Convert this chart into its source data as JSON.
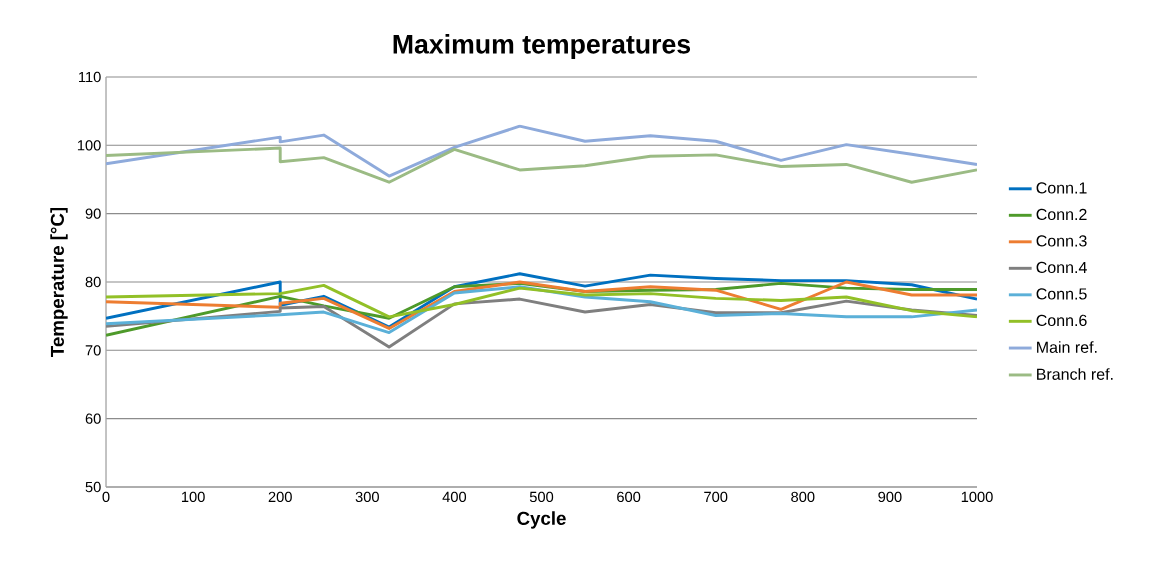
{
  "chart_data": {
    "type": "line",
    "title": "Maximum temperatures",
    "xlabel": "Cycle",
    "ylabel": "Temperature [°C]",
    "x": [
      0,
      200,
      200,
      250,
      325,
      400,
      475,
      550,
      625,
      700,
      775,
      850,
      925,
      1000
    ],
    "series": [
      {
        "name": "Conn.1",
        "color": "#0070c0",
        "values": [
          74.7,
          80.0,
          76.6,
          77.9,
          73.4,
          79.3,
          81.2,
          79.4,
          81.0,
          80.5,
          80.2,
          80.2,
          79.6,
          77.5
        ]
      },
      {
        "name": "Conn.2",
        "color": "#4e9a2a",
        "values": [
          72.2,
          77.9,
          77.9,
          76.5,
          74.7,
          79.3,
          79.8,
          78.6,
          78.8,
          78.9,
          79.8,
          79.1,
          78.9,
          78.9
        ]
      },
      {
        "name": "Conn.3",
        "color": "#ed7d31",
        "values": [
          77.1,
          76.3,
          76.9,
          77.6,
          73.2,
          78.6,
          80.0,
          78.6,
          79.3,
          78.8,
          76.0,
          80.0,
          78.1,
          78.1
        ]
      },
      {
        "name": "Conn.4",
        "color": "#7f7f7f",
        "values": [
          73.5,
          75.7,
          76.2,
          76.4,
          70.5,
          76.8,
          77.5,
          75.6,
          76.7,
          75.5,
          75.5,
          77.2,
          75.9,
          75.1
        ]
      },
      {
        "name": "Conn.5",
        "color": "#5bb0d8",
        "values": [
          73.9,
          75.2,
          75.2,
          75.6,
          72.6,
          78.4,
          79.3,
          77.8,
          77.1,
          75.1,
          75.4,
          74.9,
          74.9,
          75.9
        ]
      },
      {
        "name": "Conn.6",
        "color": "#92c027",
        "values": [
          77.8,
          78.3,
          78.3,
          79.5,
          74.9,
          76.7,
          79.1,
          78.1,
          78.3,
          77.6,
          77.3,
          77.8,
          75.8,
          74.9
        ]
      },
      {
        "name": "Main ref.",
        "color": "#8eaadb",
        "values": [
          97.3,
          101.2,
          100.5,
          101.5,
          95.5,
          99.7,
          102.8,
          100.6,
          101.4,
          100.6,
          97.8,
          100.1,
          98.7,
          97.2
        ]
      },
      {
        "name": "Branch ref.",
        "color": "#9bbb84",
        "values": [
          98.5,
          99.6,
          97.6,
          98.2,
          94.6,
          99.4,
          96.4,
          97.0,
          98.4,
          98.6,
          96.9,
          97.2,
          94.6,
          96.4
        ]
      }
    ],
    "xlim": [
      0,
      1000
    ],
    "xticks": [
      0,
      100,
      200,
      300,
      400,
      500,
      600,
      700,
      800,
      900,
      1000
    ],
    "ylim": [
      50,
      110
    ],
    "yticks": [
      50,
      60,
      70,
      80,
      90,
      100,
      110
    ],
    "grid": "y",
    "legend": "right",
    "marker": "none",
    "line_style": "solid"
  }
}
